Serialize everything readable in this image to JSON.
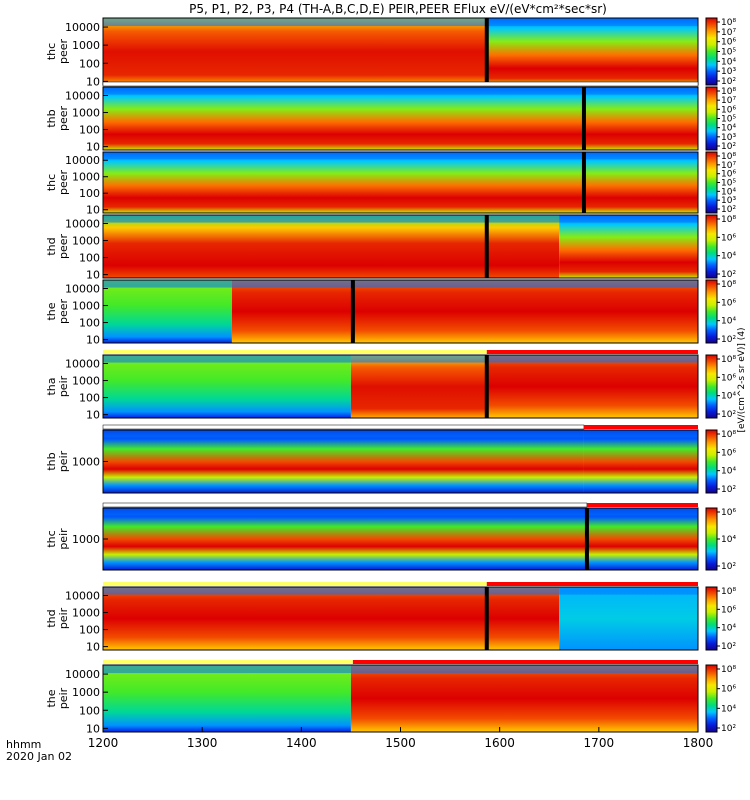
{
  "chart_data": {
    "type": "heatmap",
    "title": "P5, P1, P2, P3, P4 (TH-A,B,C,D,E) PEIR,PEER EFlux eV/(eV*cm²*sec*sr)",
    "x_axis": {
      "ticks": [
        "1200",
        "1300",
        "1400",
        "1500",
        "1600",
        "1700",
        "1800"
      ],
      "xlim": [
        1200,
        1800
      ],
      "label_line1": "hhmm",
      "label_line2": "2020 Jan 02"
    },
    "colorbar_label": "[eV/(cm^2-s sr eV)] (4)",
    "colorbar_label_alt": "[eV/(cm^2-s sr eV)]",
    "colors": {
      "low": "#0000c8",
      "mid": "#00e000",
      "high": "#ffff00",
      "max": "#e00000"
    },
    "panels": [
      {
        "name": "thc peer",
        "ylabel1": "thc",
        "ylabel2": "peer",
        "yticks": [
          "10000",
          "1000",
          "100",
          "10"
        ],
        "cbar_ticks": [
          "10⁸",
          "10⁷",
          "10⁶",
          "10⁵",
          "10⁴",
          "10³",
          "10²"
        ],
        "has_top_bar": false
      },
      {
        "name": "thb peer",
        "ylabel1": "thb",
        "ylabel2": "peer",
        "yticks": [
          "10000",
          "1000",
          "100",
          "10"
        ],
        "cbar_ticks": [
          "10⁸",
          "10⁷",
          "10⁶",
          "10⁵",
          "10⁴",
          "10³",
          "10²"
        ],
        "has_top_bar": true
      },
      {
        "name": "thc peer 2",
        "ylabel1": "thc",
        "ylabel2": "peer",
        "yticks": [
          "10000",
          "1000",
          "100",
          "10"
        ],
        "cbar_ticks": [
          "10⁸",
          "10⁷",
          "10⁶",
          "10⁵",
          "10⁴",
          "10³",
          "10²"
        ],
        "has_top_bar": false
      },
      {
        "name": "thd peer",
        "ylabel1": "thd",
        "ylabel2": "peer",
        "yticks": [
          "10000",
          "1000",
          "100",
          "10"
        ],
        "cbar_ticks": [
          "10⁸",
          "10⁶",
          "10⁴",
          "10²"
        ],
        "has_top_bar": false
      },
      {
        "name": "the peer",
        "ylabel1": "the",
        "ylabel2": "peer",
        "yticks": [
          "10000",
          "1000",
          "100",
          "10"
        ],
        "cbar_ticks": [
          "10⁸",
          "10⁶",
          "10⁴",
          "10²"
        ],
        "has_top_bar": false
      },
      {
        "name": "tha peir",
        "ylabel1": "tha",
        "ylabel2": "peir",
        "yticks": [
          "10000",
          "1000",
          "100",
          "10"
        ],
        "cbar_ticks": [
          "10⁸",
          "10⁶",
          "10⁴",
          "10²"
        ],
        "has_top_bar": true
      },
      {
        "name": "thb peir",
        "ylabel1": "thb",
        "ylabel2": "peir",
        "yticks": [
          "1000"
        ],
        "cbar_ticks": [
          "10⁸",
          "10⁶",
          "10⁴",
          "10²"
        ],
        "has_top_bar": true
      },
      {
        "name": "thc peir",
        "ylabel1": "thc",
        "ylabel2": "peir",
        "yticks": [
          "1000"
        ],
        "cbar_ticks": [
          "10⁶",
          "10⁴",
          "10²"
        ],
        "has_top_bar": true
      },
      {
        "name": "thd peir",
        "ylabel1": "thd",
        "ylabel2": "peir",
        "yticks": [
          "10000",
          "1000",
          "100",
          "10"
        ],
        "cbar_ticks": [
          "10⁸",
          "10⁶",
          "10⁴",
          "10²"
        ],
        "has_top_bar": true
      },
      {
        "name": "the peir",
        "ylabel1": "the",
        "ylabel2": "peir",
        "yticks": [
          "10000",
          "1000",
          "100",
          "10"
        ],
        "cbar_ticks": [
          "10⁸",
          "10⁶",
          "10⁴",
          "10²"
        ],
        "has_top_bar": true
      }
    ]
  }
}
